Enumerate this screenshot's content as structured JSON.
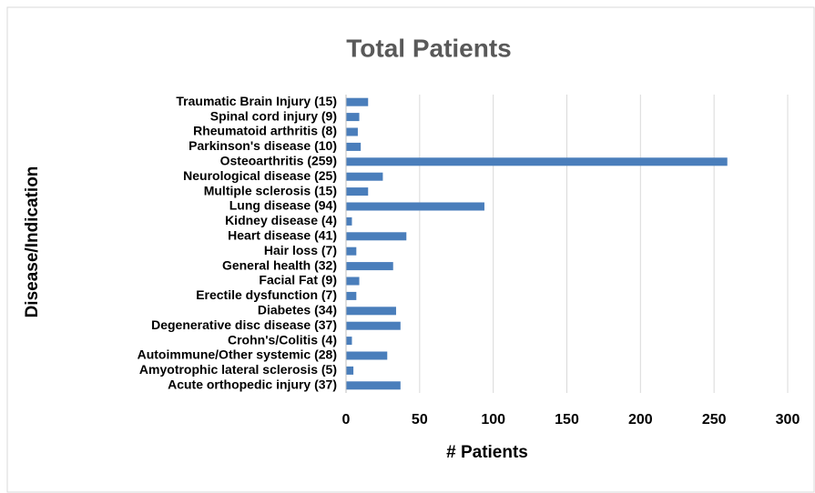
{
  "chart_data": {
    "type": "barh",
    "title": "Total Patients",
    "xlabel": "# Patients",
    "ylabel": "Disease/Indication",
    "categories": [
      "Traumatic Brain Injury (15)",
      "Spinal cord injury (9)",
      "Rheumatoid arthritis (8)",
      "Parkinson's disease (10)",
      "Osteoarthritis (259)",
      "Neurological disease (25)",
      "Multiple sclerosis (15)",
      "Lung disease (94)",
      "Kidney disease (4)",
      "Heart disease (41)",
      "Hair loss (7)",
      "General health (32)",
      "Facial Fat (9)",
      "Erectile dysfunction (7)",
      "Diabetes (34)",
      "Degenerative disc disease (37)",
      "Crohn's/Colitis (4)",
      "Autoimmune/Other systemic (28)",
      "Amyotrophic lateral sclerosis (5)",
      "Acute orthopedic injury (37)"
    ],
    "values": [
      15,
      9,
      8,
      10,
      259,
      25,
      15,
      94,
      4,
      41,
      7,
      32,
      9,
      7,
      34,
      37,
      4,
      28,
      5,
      37
    ],
    "color": "#4a7ebb",
    "xlim": [
      0,
      300
    ],
    "xticks": [
      0,
      50,
      100,
      150,
      200,
      250,
      300
    ],
    "grid": true
  }
}
